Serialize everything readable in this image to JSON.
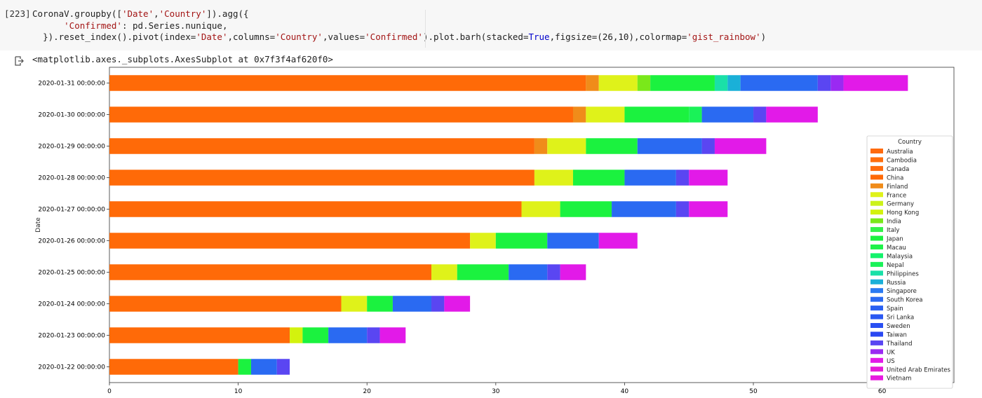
{
  "cell": {
    "prompt": "[223]",
    "code_line1_a": "CoronaV.groupby([",
    "code_line1_s1": "'Date'",
    "code_line1_b": ",",
    "code_line1_s2": "'Country'",
    "code_line1_c": "]).agg({",
    "code_line2_s": "'Confirmed'",
    "code_line2_b": ": pd.Series.nunique,",
    "code_line3_a": "}).reset_index().pivot(index=",
    "code_line3_s1": "'Date'",
    "code_line3_b": ",columns=",
    "code_line3_s2": "'Country'",
    "code_line3_c": ",values=",
    "code_line3_s3": "'Confirmed'",
    "code_line3_d": ").plot.barh(stacked=",
    "code_line3_kw": "True",
    "code_line3_e": ",figsize=(26,10),colormap=",
    "code_line3_s4": "'gist_rainbow'",
    "code_line3_f": ")",
    "output_text": "<matplotlib.axes._subplots.AxesSubplot at 0x7f3f4af620f0>"
  },
  "chart_data": {
    "type": "bar",
    "orientation": "horizontal",
    "stacked": true,
    "ylabel": "Date",
    "xlabel": "",
    "xlim": [
      0,
      65
    ],
    "xticks": [
      0,
      10,
      20,
      30,
      40,
      50,
      60
    ],
    "categories": [
      "2020-01-22 00:00:00",
      "2020-01-23 00:00:00",
      "2020-01-24 00:00:00",
      "2020-01-25 00:00:00",
      "2020-01-26 00:00:00",
      "2020-01-27 00:00:00",
      "2020-01-28 00:00:00",
      "2020-01-29 00:00:00",
      "2020-01-30 00:00:00",
      "2020-01-31 00:00:00"
    ],
    "legend_title": "Country",
    "legend_position": "center-right",
    "series": [
      {
        "name": "Australia",
        "color": "#ff6a0d",
        "values": [
          0,
          0,
          0,
          0,
          0,
          0,
          0,
          0,
          0,
          0
        ]
      },
      {
        "name": "Cambodia",
        "color": "#ff6e0d",
        "values": [
          0,
          0,
          0,
          0,
          0,
          0,
          0,
          0,
          0,
          0
        ]
      },
      {
        "name": "Canada",
        "color": "#ff6c0e",
        "values": [
          0,
          0,
          0,
          0,
          0,
          0,
          0,
          0,
          0,
          0
        ]
      },
      {
        "name": "China",
        "color": "#ff6a08",
        "values": [
          10,
          14,
          18,
          25,
          28,
          32,
          33,
          33,
          36,
          37
        ]
      },
      {
        "name": "Finland",
        "color": "#f08c1a",
        "values": [
          0,
          0,
          0,
          0,
          0,
          0,
          0,
          1,
          1,
          1
        ]
      },
      {
        "name": "France",
        "color": "#dff21a",
        "values": [
          0,
          0,
          2,
          2,
          2,
          3,
          3,
          3,
          3,
          3
        ]
      },
      {
        "name": "Germany",
        "color": "#ccf21a",
        "values": [
          0,
          0,
          0,
          0,
          0,
          0,
          0,
          0,
          0,
          0
        ]
      },
      {
        "name": "Hong Kong",
        "color": "#d3f20e",
        "values": [
          0,
          1,
          0,
          0,
          0,
          0,
          0,
          0,
          0,
          0
        ]
      },
      {
        "name": "India",
        "color": "#7ae81a",
        "values": [
          0,
          0,
          0,
          0,
          0,
          0,
          0,
          0,
          0,
          1
        ]
      },
      {
        "name": "Italy",
        "color": "#33f24a",
        "values": [
          0,
          0,
          0,
          0,
          0,
          0,
          0,
          0,
          0,
          0
        ]
      },
      {
        "name": "Japan",
        "color": "#1bf23f",
        "values": [
          1,
          2,
          2,
          4,
          4,
          4,
          4,
          4,
          5,
          5
        ]
      },
      {
        "name": "Macau",
        "color": "#1ff249",
        "values": [
          0,
          0,
          0,
          0,
          0,
          0,
          0,
          0,
          0,
          0
        ]
      },
      {
        "name": "Malaysia",
        "color": "#14f26b",
        "values": [
          0,
          0,
          0,
          0,
          0,
          0,
          0,
          0,
          0,
          0
        ]
      },
      {
        "name": "Nepal",
        "color": "#1af258",
        "values": [
          0,
          0,
          0,
          0,
          0,
          0,
          0,
          0,
          1,
          0
        ]
      },
      {
        "name": "Philippines",
        "color": "#1ae0a8",
        "values": [
          0,
          0,
          0,
          0,
          0,
          0,
          0,
          0,
          0,
          1
        ]
      },
      {
        "name": "Russia",
        "color": "#1ab0d8",
        "values": [
          0,
          0,
          0,
          0,
          0,
          0,
          0,
          0,
          0,
          1
        ]
      },
      {
        "name": "Singapore",
        "color": "#2a7af2",
        "values": [
          0,
          0,
          0,
          0,
          0,
          0,
          0,
          0,
          0,
          0
        ]
      },
      {
        "name": "South Korea",
        "color": "#2a6af2",
        "values": [
          2,
          3,
          3,
          3,
          4,
          5,
          4,
          5,
          4,
          6
        ]
      },
      {
        "name": "Spain",
        "color": "#2a60f2",
        "values": [
          0,
          0,
          0,
          0,
          0,
          0,
          0,
          0,
          0,
          0
        ]
      },
      {
        "name": "Sri Lanka",
        "color": "#2a58f2",
        "values": [
          0,
          0,
          0,
          0,
          0,
          0,
          0,
          0,
          0,
          0
        ]
      },
      {
        "name": "Sweden",
        "color": "#2a50f2",
        "values": [
          0,
          0,
          0,
          0,
          0,
          0,
          0,
          0,
          0,
          0
        ]
      },
      {
        "name": "Taiwan",
        "color": "#2a48f2",
        "values": [
          0,
          0,
          0,
          0,
          0,
          0,
          0,
          0,
          0,
          0
        ]
      },
      {
        "name": "Thailand",
        "color": "#5a46f2",
        "values": [
          1,
          1,
          1,
          1,
          0,
          1,
          1,
          1,
          1,
          1
        ]
      },
      {
        "name": "UK",
        "color": "#9a2af2",
        "values": [
          0,
          0,
          0,
          0,
          0,
          0,
          0,
          0,
          0,
          1
        ]
      },
      {
        "name": "US",
        "color": "#e21ae8",
        "values": [
          0,
          2,
          2,
          2,
          3,
          3,
          3,
          4,
          4,
          5
        ]
      },
      {
        "name": "United Arab Emirates",
        "color": "#e61ad8",
        "values": [
          0,
          0,
          0,
          0,
          0,
          0,
          0,
          0,
          0,
          0
        ]
      },
      {
        "name": "Vietnam",
        "color": "#e81ae0",
        "values": [
          0,
          0,
          0,
          0,
          0,
          0,
          0,
          0,
          0,
          0
        ]
      }
    ]
  }
}
